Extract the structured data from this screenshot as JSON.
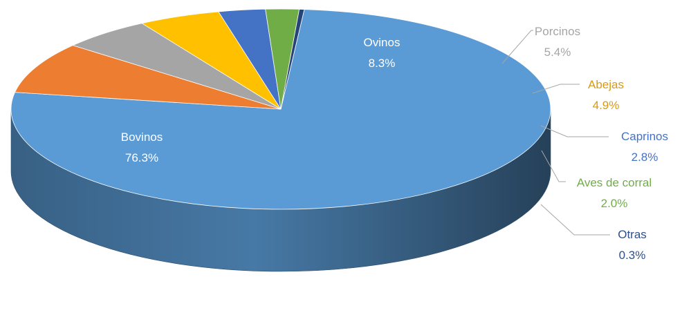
{
  "chart_data": {
    "type": "pie",
    "title": "",
    "grid": false,
    "legend": "none",
    "series": [
      {
        "name": "",
        "slices": [
          {
            "label": "Bovinos",
            "value": 76.3,
            "value_label": "76.3%",
            "color": "#5b9bd5",
            "label_color": "#ffffff",
            "label_position": "inside"
          },
          {
            "label": "Ovinos",
            "value": 8.3,
            "value_label": "8.3%",
            "color": "#ed7d31",
            "label_color": "#ffffff",
            "label_position": "inside"
          },
          {
            "label": "Porcinos",
            "value": 5.4,
            "value_label": "5.4%",
            "color": "#a5a5a5",
            "label_color": "#a5a5a5",
            "label_position": "outside"
          },
          {
            "label": "Abejas",
            "value": 4.9,
            "value_label": "4.9%",
            "color": "#ffc000",
            "label_color": "#d99a10",
            "label_position": "outside"
          },
          {
            "label": "Caprinos",
            "value": 2.8,
            "value_label": "2.8%",
            "color": "#4472c4",
            "label_color": "#4472c4",
            "label_position": "outside"
          },
          {
            "label": "Aves de corral",
            "value": 2.0,
            "value_label": "2.0%",
            "color": "#70ad47",
            "label_color": "#70ad47",
            "label_position": "outside"
          },
          {
            "label": "Otras",
            "value": 0.3,
            "value_label": "0.3%",
            "color": "#264478",
            "label_color": "#2f4f8a",
            "label_position": "outside"
          }
        ]
      }
    ]
  }
}
